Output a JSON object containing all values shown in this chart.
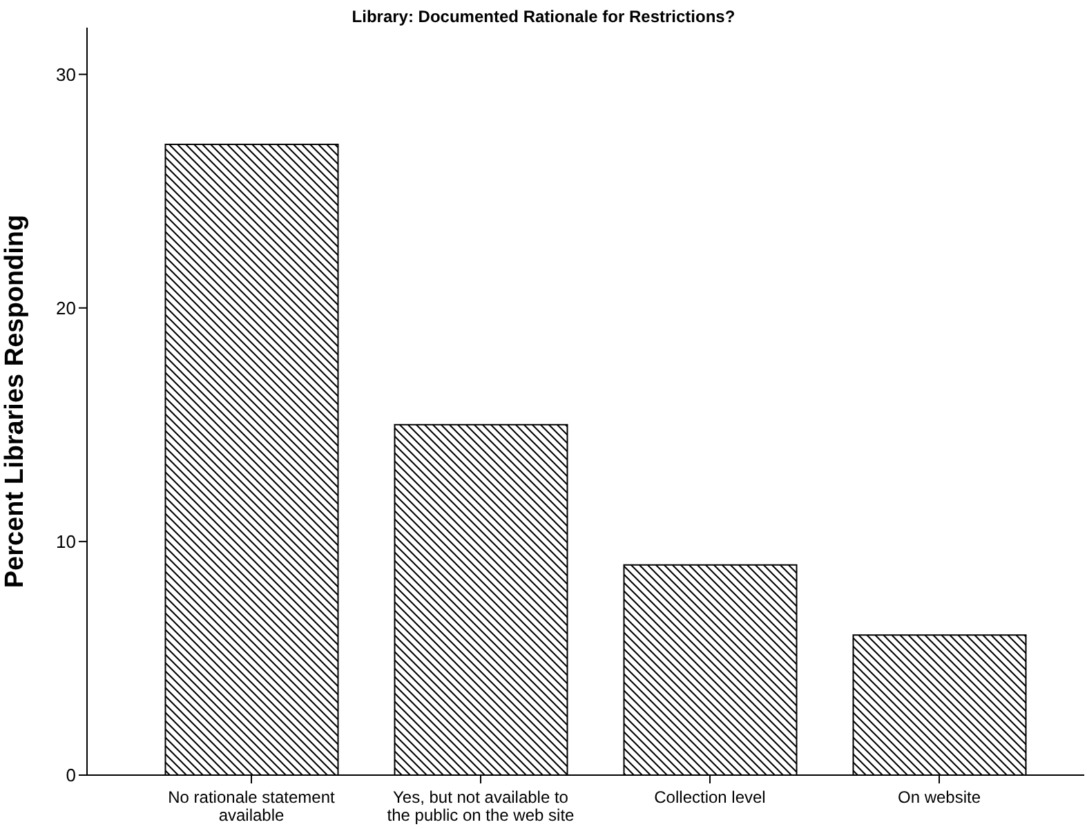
{
  "chart_data": {
    "type": "bar",
    "title": "Library: Documented Rationale for Restrictions?",
    "ylabel": "Percent Libraries Responding",
    "categories": [
      "No rationale statement available",
      "Yes, but not available to the public on the web site",
      "Collection level",
      "On website"
    ],
    "values": [
      27,
      15,
      9,
      6
    ],
    "color": "#000000",
    "ylim": [
      0,
      32
    ],
    "yticks": [
      0,
      10,
      20,
      30
    ],
    "grid": false,
    "legend": false
  }
}
